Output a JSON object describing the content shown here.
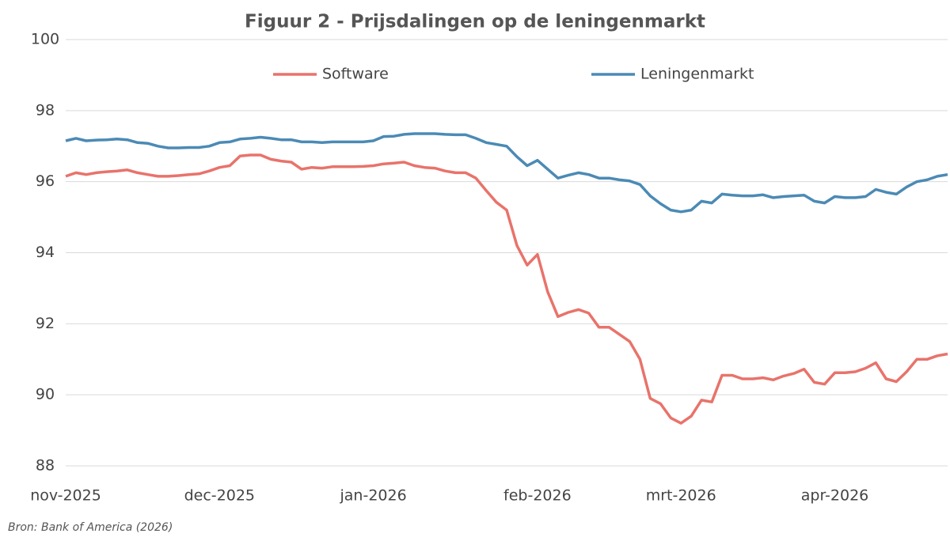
{
  "chart_data": {
    "type": "line",
    "title": "Figuur 2 - Prijsdalingen op de leningenmarkt",
    "note": "Bron: Bank of America (2026)",
    "categories": [
      "nov-2025",
      null,
      null,
      null,
      null,
      null,
      null,
      null,
      null,
      null,
      null,
      null,
      null,
      null,
      null,
      "dec-2025",
      null,
      null,
      null,
      null,
      null,
      null,
      null,
      null,
      null,
      null,
      null,
      null,
      null,
      null,
      "jan-2026",
      null,
      null,
      null,
      null,
      null,
      null,
      null,
      null,
      null,
      null,
      null,
      null,
      null,
      null,
      null,
      "feb-2026",
      null,
      null,
      null,
      null,
      null,
      null,
      null,
      null,
      null,
      null,
      null,
      null,
      null,
      "mrt-2026",
      null,
      null,
      null,
      null,
      null,
      null,
      null,
      null,
      null,
      null,
      null,
      null,
      null,
      null,
      "apr-2026",
      null,
      null,
      null,
      null,
      null,
      null,
      null,
      null,
      null,
      null,
      null
    ],
    "series": [
      {
        "name": "Software",
        "color": "#e8736b",
        "values": [
          96.15,
          96.25,
          96.2,
          96.25,
          96.28,
          96.3,
          96.33,
          96.25,
          96.2,
          96.15,
          96.15,
          96.17,
          96.2,
          96.22,
          96.3,
          96.4,
          96.45,
          96.72,
          96.75,
          96.75,
          96.63,
          96.58,
          96.55,
          96.35,
          96.4,
          96.38,
          96.42,
          96.42,
          96.42,
          96.43,
          96.45,
          96.5,
          96.52,
          96.55,
          96.45,
          96.4,
          96.38,
          96.3,
          96.25,
          96.25,
          96.1,
          95.75,
          95.42,
          95.2,
          94.2,
          93.65,
          93.95,
          92.9,
          92.2,
          92.32,
          92.4,
          92.3,
          91.9,
          91.9,
          91.7,
          91.5,
          91.0,
          89.9,
          89.75,
          89.35,
          89.2,
          89.4,
          89.85,
          89.8,
          90.55,
          90.55,
          90.45,
          90.45,
          90.48,
          90.42,
          90.53,
          90.6,
          90.72,
          90.35,
          90.3,
          90.62,
          90.62,
          90.65,
          90.75,
          90.9,
          90.45,
          90.37,
          90.65,
          91.0,
          91.0,
          91.1,
          91.15
        ]
      },
      {
        "name": "Leningenmarkt",
        "color": "#4b8ab5",
        "values": [
          97.15,
          97.22,
          97.15,
          97.17,
          97.18,
          97.2,
          97.18,
          97.1,
          97.08,
          97.0,
          96.95,
          96.95,
          96.96,
          96.96,
          97.0,
          97.1,
          97.12,
          97.2,
          97.22,
          97.25,
          97.22,
          97.18,
          97.18,
          97.12,
          97.12,
          97.1,
          97.12,
          97.12,
          97.12,
          97.12,
          97.15,
          97.27,
          97.28,
          97.33,
          97.35,
          97.35,
          97.35,
          97.33,
          97.32,
          97.32,
          97.22,
          97.1,
          97.05,
          97.0,
          96.7,
          96.45,
          96.6,
          96.35,
          96.1,
          96.18,
          96.25,
          96.2,
          96.1,
          96.1,
          96.05,
          96.02,
          95.92,
          95.6,
          95.38,
          95.2,
          95.15,
          95.2,
          95.45,
          95.4,
          95.65,
          95.62,
          95.6,
          95.6,
          95.63,
          95.55,
          95.58,
          95.6,
          95.62,
          95.45,
          95.4,
          95.58,
          95.55,
          95.55,
          95.58,
          95.78,
          95.7,
          95.65,
          95.85,
          96.0,
          96.05,
          96.15,
          96.2
        ]
      }
    ],
    "ylim": [
      88,
      100
    ],
    "yticks": [
      88,
      90,
      92,
      94,
      96,
      98,
      100
    ],
    "grid": true
  }
}
